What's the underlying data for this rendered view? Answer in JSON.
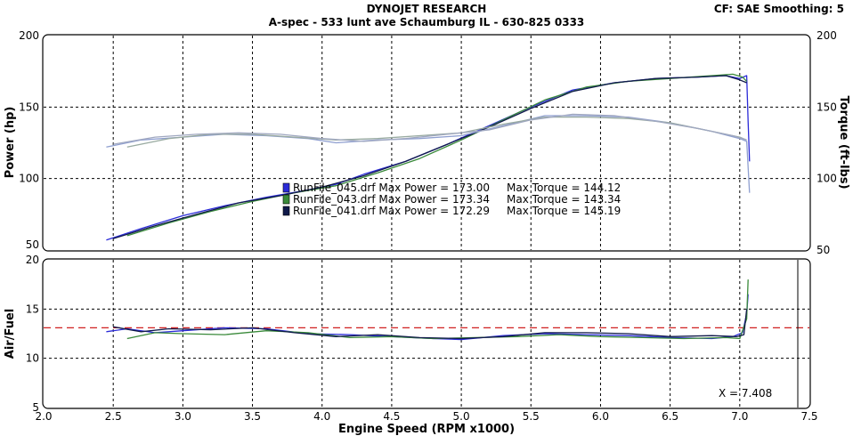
{
  "header": {
    "title": "DYNOJET RESEARCH",
    "subtitle": "A-spec - 533 lunt ave Schaumburg IL - 630-825 0333",
    "cf_label": "CF: SAE  Smoothing: 5"
  },
  "cursor_label": "X = 7.408",
  "colors": {
    "run045": "#2b2bd8",
    "run043": "#3a8a3a",
    "run041": "#101a4a",
    "torque045": "#8f9fd0",
    "torque043": "#98aaa0",
    "torque041": "#a0a8c0",
    "af_target": "#d02020"
  },
  "chart_data": [
    {
      "type": "line",
      "ylabel": "Power (hp)",
      "y2label": "Torque (ft-lbs)",
      "xlim": [
        2.0,
        7.5
      ],
      "ylim": [
        50,
        200
      ],
      "y2lim": [
        50,
        200
      ],
      "xticks": [
        "2.0",
        "2.5",
        "3.0",
        "3.5",
        "4.0",
        "4.5",
        "5.0",
        "5.5",
        "6.0",
        "6.5",
        "7.0",
        "7.5"
      ],
      "yticks": [
        "50",
        "100",
        "150",
        "200"
      ],
      "y2ticks": [
        "50",
        "100",
        "150",
        "200"
      ],
      "grid": true,
      "legend": [
        {
          "label": "RunFile_045.drf Max Power = 173.00     Max Torque = 144.12",
          "color_key": "run045"
        },
        {
          "label": "RunFile_043.drf Max Power = 173.34     Max Torque = 143.34",
          "color_key": "run043"
        },
        {
          "label": "RunFile_041.drf Max Power = 172.29     Max Torque = 145.19",
          "color_key": "run041"
        }
      ],
      "series": [
        {
          "name": "RunFile_045.drf",
          "kind": "power",
          "color_key": "run045",
          "x": [
            2.45,
            2.7,
            3.0,
            3.3,
            3.6,
            3.9,
            4.1,
            4.3,
            4.6,
            4.9,
            5.2,
            5.5,
            5.8,
            6.1,
            6.4,
            6.7,
            6.9,
            7.0,
            7.05,
            7.06,
            7.07
          ],
          "y": [
            57,
            65,
            74,
            81,
            87,
            92,
            96,
            103,
            112,
            124,
            137,
            150,
            162,
            167,
            170,
            171,
            172,
            170,
            172,
            140,
            112
          ]
        },
        {
          "name": "RunFile_043.drf",
          "kind": "power",
          "color_key": "run043",
          "x": [
            2.6,
            2.9,
            3.2,
            3.5,
            3.8,
            4.1,
            4.4,
            4.7,
            5.0,
            5.3,
            5.6,
            5.9,
            6.2,
            6.5,
            6.8,
            6.95,
            7.02,
            7.05
          ],
          "y": [
            60,
            69,
            77,
            84,
            90,
            95,
            104,
            114,
            127,
            141,
            155,
            164,
            168,
            170,
            172,
            173,
            171,
            168
          ]
        },
        {
          "name": "RunFile_041.drf",
          "kind": "power",
          "color_key": "run041",
          "x": [
            2.5,
            2.8,
            3.1,
            3.4,
            3.7,
            4.0,
            4.3,
            4.6,
            4.9,
            5.2,
            5.5,
            5.8,
            6.1,
            6.4,
            6.7,
            6.9,
            7.0,
            7.05
          ],
          "y": [
            58,
            67,
            75,
            83,
            88,
            94,
            102,
            112,
            124,
            136,
            149,
            161,
            167,
            170,
            171,
            172,
            169,
            167
          ]
        },
        {
          "name": "RunFile_045.drf",
          "kind": "torque",
          "color_key": "torque045",
          "x": [
            2.45,
            2.7,
            3.0,
            3.3,
            3.6,
            3.9,
            4.1,
            4.4,
            4.7,
            5.0,
            5.3,
            5.6,
            5.9,
            6.2,
            6.5,
            6.8,
            7.0,
            7.05,
            7.07
          ],
          "y": [
            122,
            127,
            129,
            131,
            130,
            128,
            125,
            127,
            128,
            130,
            137,
            144,
            144,
            143,
            139,
            133,
            128,
            126,
            90
          ]
        },
        {
          "name": "RunFile_043.drf",
          "kind": "torque",
          "color_key": "torque043",
          "x": [
            2.6,
            2.9,
            3.2,
            3.5,
            3.8,
            4.1,
            4.4,
            4.7,
            5.0,
            5.3,
            5.6,
            5.9,
            6.2,
            6.5,
            6.8,
            7.0,
            7.05
          ],
          "y": [
            122,
            128,
            131,
            131,
            129,
            127,
            128,
            130,
            132,
            138,
            143,
            143,
            142,
            139,
            133,
            129,
            127
          ]
        },
        {
          "name": "RunFile_041.drf",
          "kind": "torque",
          "color_key": "torque041",
          "x": [
            2.5,
            2.8,
            3.1,
            3.4,
            3.7,
            4.0,
            4.3,
            4.6,
            4.9,
            5.2,
            5.5,
            5.8,
            6.1,
            6.4,
            6.7,
            6.95,
            7.05
          ],
          "y": [
            124,
            129,
            131,
            132,
            131,
            128,
            126,
            128,
            131,
            134,
            141,
            145,
            144,
            140,
            135,
            130,
            127
          ]
        }
      ]
    },
    {
      "type": "line",
      "ylabel": "Air/Fuel",
      "xlabel": "Engine Speed (RPM x1000)",
      "xlim": [
        2.0,
        7.5
      ],
      "ylim": [
        5,
        20
      ],
      "xticks": [
        "2.0",
        "2.5",
        "3.0",
        "3.5",
        "4.0",
        "4.5",
        "5.0",
        "5.5",
        "6.0",
        "6.5",
        "7.0",
        "7.5"
      ],
      "yticks": [
        "5",
        "10",
        "15",
        "20"
      ],
      "grid": true,
      "reference_line": {
        "y": 13.1,
        "color_key": "af_target",
        "style": "dashed"
      },
      "series": [
        {
          "name": "RunFile_045.drf",
          "color_key": "run045",
          "x": [
            2.45,
            2.6,
            2.8,
            3.0,
            3.3,
            3.6,
            3.9,
            4.2,
            4.5,
            4.8,
            5.0,
            5.3,
            5.6,
            5.9,
            6.2,
            6.5,
            6.8,
            6.95,
            7.02,
            7.05,
            7.06
          ],
          "y": [
            12.7,
            13.0,
            12.6,
            12.8,
            13.1,
            13.0,
            12.5,
            12.4,
            12.2,
            12.0,
            11.9,
            12.3,
            12.5,
            12.4,
            12.3,
            12.1,
            12.0,
            12.2,
            12.6,
            14.5,
            16.5
          ]
        },
        {
          "name": "RunFile_043.drf",
          "color_key": "run043",
          "x": [
            2.6,
            2.8,
            3.0,
            3.3,
            3.6,
            3.9,
            4.2,
            4.5,
            4.8,
            5.1,
            5.4,
            5.7,
            6.0,
            6.3,
            6.6,
            6.9,
            7.0,
            7.05,
            7.06
          ],
          "y": [
            12.0,
            12.6,
            12.5,
            12.4,
            12.8,
            12.6,
            12.1,
            12.2,
            12.0,
            12.1,
            12.2,
            12.4,
            12.2,
            12.1,
            12.0,
            12.1,
            12.0,
            14.0,
            18.0
          ]
        },
        {
          "name": "RunFile_041.drf",
          "color_key": "run041",
          "x": [
            2.5,
            2.7,
            2.9,
            3.2,
            3.5,
            3.8,
            4.1,
            4.4,
            4.7,
            5.0,
            5.3,
            5.6,
            5.9,
            6.2,
            6.5,
            6.8,
            6.98,
            7.03,
            7.05
          ],
          "y": [
            13.2,
            12.7,
            13.0,
            12.9,
            13.1,
            12.6,
            12.2,
            12.4,
            12.1,
            12.0,
            12.2,
            12.6,
            12.6,
            12.5,
            12.2,
            12.3,
            12.2,
            12.4,
            15.0
          ]
        }
      ]
    }
  ]
}
